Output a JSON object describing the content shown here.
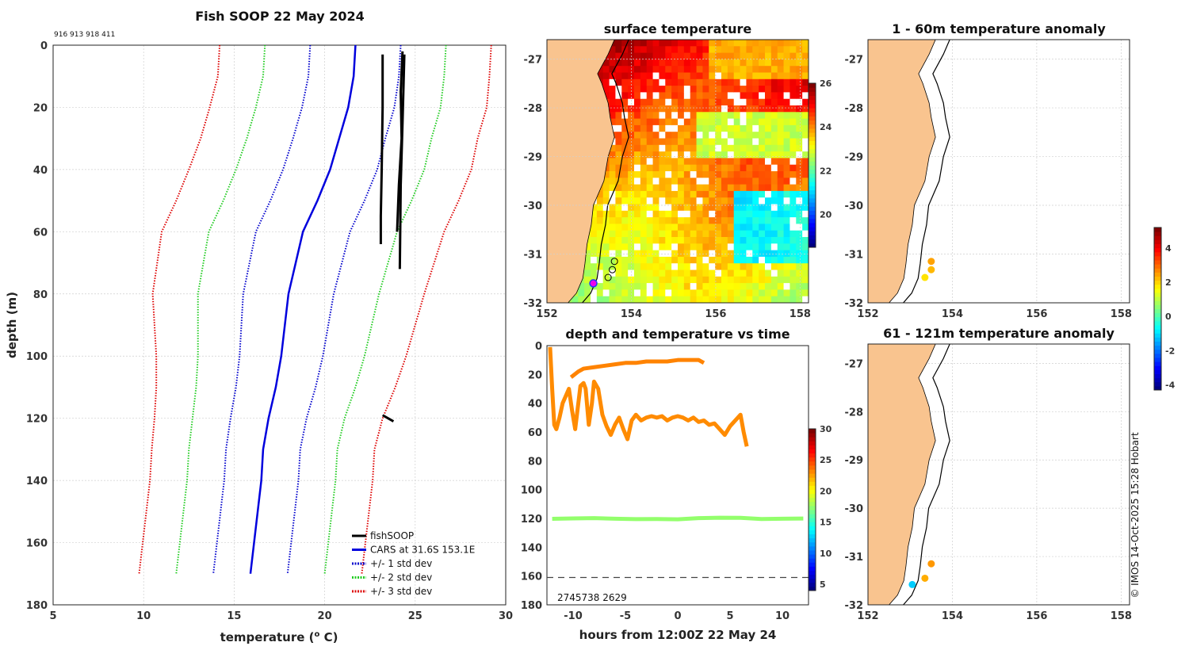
{
  "chart_data": [
    {
      "type": "line",
      "id": "profile",
      "title": "Fish SOOP 22 May 2024",
      "subtitle": "916 913 918 411",
      "xlabel": "temperature (",
      "xlabel_sup": "o",
      "xlabel_end": " C)",
      "ylabel": "depth (m)",
      "xlim": [
        5,
        30
      ],
      "ylim": [
        0,
        180
      ],
      "xticks": [
        5,
        10,
        15,
        20,
        25,
        30
      ],
      "yticks": [
        0,
        20,
        40,
        60,
        80,
        100,
        120,
        140,
        160,
        180
      ],
      "depths": [
        0,
        10,
        20,
        30,
        40,
        50,
        60,
        70,
        80,
        90,
        100,
        110,
        120,
        130,
        140,
        150,
        160,
        170
      ],
      "cars_mean": [
        21.7,
        21.6,
        21.3,
        20.8,
        20.3,
        19.6,
        18.8,
        18.4,
        18.0,
        17.8,
        17.6,
        17.3,
        16.9,
        16.6,
        16.5,
        16.3,
        16.1,
        15.9
      ],
      "std": [
        2.5,
        2.5,
        2.55,
        2.55,
        2.6,
        2.6,
        2.6,
        2.55,
        2.5,
        2.4,
        2.3,
        2.2,
        2.1,
        2.05,
        2.05,
        2.05,
        2.05,
        2.05
      ],
      "fish_profiles": [
        {
          "depths": [
            3,
            20,
            40,
            55,
            64
          ],
          "temps": [
            23.2,
            23.2,
            23.15,
            23.1,
            23.1
          ]
        },
        {
          "depths": [
            2,
            15,
            30,
            45,
            60
          ],
          "temps": [
            24.3,
            24.2,
            24.25,
            24.1,
            24.0
          ]
        },
        {
          "depths": [
            3,
            25,
            45,
            72
          ],
          "temps": [
            24.4,
            24.3,
            24.2,
            24.15
          ]
        },
        {
          "depths": [
            119,
            120,
            121
          ],
          "temps": [
            23.2,
            23.5,
            23.8
          ]
        }
      ],
      "legend": [
        {
          "label": "fishSOOP",
          "color": "#000000",
          "style": "solid"
        },
        {
          "label": "CARS at 31.6S 153.1E",
          "color": "#0000dd",
          "style": "solid"
        },
        {
          "label": "+/- 1 std dev",
          "color": "#0000cc",
          "style": "dotted"
        },
        {
          "label": "+/- 2 std dev",
          "color": "#22cc22",
          "style": "dotted"
        },
        {
          "label": "+/- 3 std dev",
          "color": "#dd0000",
          "style": "dotted"
        }
      ]
    },
    {
      "type": "heatmap",
      "id": "sst",
      "title": "surface temperature",
      "xlim": [
        152,
        158.2
      ],
      "ylim": [
        -32,
        -26.6
      ],
      "xticks": [
        152,
        154,
        156,
        158
      ],
      "yticks": [
        -27,
        -28,
        -29,
        -30,
        -31,
        -32
      ],
      "colorbar": {
        "min": 18.5,
        "max": 26,
        "ticks": [
          20,
          22,
          24,
          26
        ]
      },
      "obs_lon": [
        153.6,
        153.55,
        153.45
      ],
      "obs_lat": [
        -31.15,
        -31.32,
        -31.48
      ]
    },
    {
      "type": "scatter",
      "id": "depth_time",
      "title": "depth and temperature vs time",
      "xlabel": "hours from 12:00Z 22 May 24",
      "xlim": [
        -12.5,
        12.5
      ],
      "ylim": [
        0,
        180
      ],
      "xticks": [
        -10,
        -5,
        0,
        5,
        10
      ],
      "yticks": [
        0,
        20,
        40,
        60,
        80,
        100,
        120,
        140,
        160,
        180
      ],
      "bottom_depth": 161,
      "annotation": "2745738 2629",
      "colorbar": {
        "min": 4,
        "max": 30,
        "ticks": [
          5,
          10,
          15,
          20,
          25,
          30
        ]
      },
      "series": [
        {
          "name": "surface tracks",
          "temp": 23.2,
          "hours": [
            -12.2,
            -12.0,
            -11.8,
            -11.6,
            -11.3,
            -11.0,
            -10.7,
            -10.4,
            -10.1,
            -9.8,
            -9.5,
            -9.3,
            -9.0,
            -8.8,
            -8.5,
            -8.2,
            -8.0,
            -7.6,
            -7.2,
            -6.8,
            -6.4,
            -6.0,
            -5.6,
            -5.2,
            -4.8,
            -4.4,
            -4.0,
            -3.5,
            -3.0,
            -2.5,
            -2.0,
            -1.5,
            -1.0,
            -0.5,
            0.0,
            0.5,
            1.0,
            1.5,
            2.0,
            2.5,
            3.0,
            3.5,
            4.0,
            4.5,
            5.0,
            5.5,
            6.0,
            6.3,
            6.6
          ],
          "depths": [
            1,
            30,
            55,
            58,
            50,
            40,
            35,
            30,
            45,
            58,
            40,
            28,
            26,
            30,
            55,
            40,
            25,
            30,
            48,
            56,
            62,
            55,
            50,
            58,
            65,
            52,
            48,
            52,
            50,
            49,
            50,
            49,
            52,
            50,
            49,
            50,
            52,
            50,
            53,
            52,
            55,
            54,
            58,
            62,
            56,
            52,
            48,
            60,
            70
          ]
        },
        {
          "name": "shallow track",
          "temp": 23.4,
          "hours": [
            -10.2,
            -9.5,
            -9.0,
            -8.0,
            -7.0,
            -6.0,
            -5.0,
            -4.0,
            -3.0,
            -2.0,
            -1.0,
            0.0,
            1.0,
            2.0,
            2.5
          ],
          "depths": [
            22,
            18,
            16,
            15,
            14,
            13,
            12,
            12,
            11,
            11,
            11,
            10,
            10,
            10,
            12
          ]
        },
        {
          "name": "deep track",
          "temp": 17.5,
          "hours": [
            -12.0,
            -10.0,
            -8.0,
            -6.0,
            -4.0,
            -2.0,
            0.0,
            2.0,
            4.0,
            6.0,
            8.0,
            10.0,
            12.0
          ],
          "depths": [
            120.3,
            120.0,
            119.8,
            120.2,
            120.5,
            120.4,
            120.6,
            119.8,
            119.5,
            119.6,
            120.4,
            120.2,
            120.1
          ]
        }
      ]
    },
    {
      "type": "scatter",
      "id": "anom_shallow",
      "title": "1 - 60m temperature anomaly",
      "xlim": [
        152,
        158.2
      ],
      "ylim": [
        -32,
        -26.6
      ],
      "xticks": [
        152,
        154,
        156,
        158
      ],
      "yticks": [
        -27,
        -28,
        -29,
        -30,
        -31,
        -32
      ],
      "points": [
        {
          "lon": 153.5,
          "lat": -31.15,
          "anom": 2.5
        },
        {
          "lon": 153.5,
          "lat": -31.32,
          "anom": 2.3
        },
        {
          "lon": 153.35,
          "lat": -31.48,
          "anom": 1.9
        }
      ]
    },
    {
      "type": "scatter",
      "id": "anom_deep",
      "title": "61 - 121m temperature anomaly",
      "xlim": [
        152,
        158.2
      ],
      "ylim": [
        -32,
        -26.6
      ],
      "xticks": [
        152,
        154,
        156,
        158
      ],
      "yticks": [
        -27,
        -28,
        -29,
        -30,
        -31,
        -32
      ],
      "points": [
        {
          "lon": 153.5,
          "lat": -31.15,
          "anom": 2.6
        },
        {
          "lon": 153.35,
          "lat": -31.45,
          "anom": 2.4
        },
        {
          "lon": 153.05,
          "lat": -31.58,
          "anom": -1.2
        }
      ]
    }
  ],
  "anomaly_colorbar": {
    "min": -4.3,
    "max": 5.2,
    "ticks": [
      -4,
      -2,
      0,
      2,
      4
    ]
  },
  "colors": {
    "land": "#f9c48f",
    "profile_black": "#000000",
    "cars_blue": "#0000dd",
    "dt_orange": "#f5ab00",
    "dt_green": "#22c43a"
  },
  "watermark": "© IMOS 14-Oct-2025 15:28 Hobart"
}
